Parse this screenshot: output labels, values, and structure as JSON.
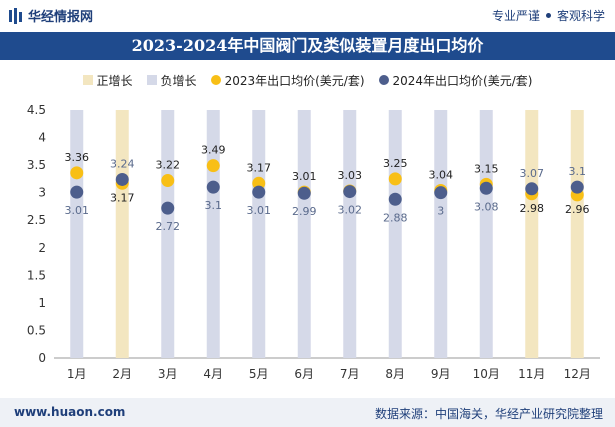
{
  "header": {
    "brand": "华经情报网",
    "tagline_left": "专业严谨",
    "tagline_right": "客观科学"
  },
  "title": "2023-2024年中国阀门及类似装置月度出口均价",
  "legend": {
    "positive": "正增长",
    "negative": "负增长",
    "series2023": "2023年出口均价(美元/套)",
    "series2024": "2024年出口均价(美元/套)"
  },
  "colors": {
    "positive_bar": "#f3e6c0",
    "negative_bar": "#d5d9e8",
    "series2023": "#f8bf16",
    "series2024": "#4d5e8c",
    "title_bg": "#1f4b8e"
  },
  "chart_data": {
    "type": "scatter",
    "title": "2023-2024年中国阀门及类似装置月度出口均价",
    "categories": [
      "1月",
      "2月",
      "3月",
      "4月",
      "5月",
      "6月",
      "7月",
      "8月",
      "9月",
      "10月",
      "11月",
      "12月"
    ],
    "series": [
      {
        "name": "2023年出口均价(美元/套)",
        "values": [
          3.36,
          3.17,
          3.22,
          3.49,
          3.17,
          3.01,
          3.03,
          3.25,
          3.04,
          3.15,
          2.98,
          2.96
        ]
      },
      {
        "name": "2024年出口均价(美元/套)",
        "values": [
          3.01,
          3.24,
          2.72,
          3.1,
          3.01,
          2.99,
          3.02,
          2.88,
          3,
          3.08,
          3.07,
          3.1
        ]
      }
    ],
    "labels2023": [
      "3.36",
      "3.17",
      "3.22",
      "3.49",
      "3.17",
      "3.01",
      "3.03",
      "3.25",
      "3.04",
      "3.15",
      "2.98",
      "2.96"
    ],
    "labels2024": [
      "3.01",
      "3.24",
      "2.72",
      "3.1",
      "3.01",
      "2.99",
      "3.02",
      "2.88",
      "3",
      "3.08",
      "3.07",
      "3.1"
    ],
    "y_ticks": [
      "0",
      "0.5",
      "1",
      "1.5",
      "2",
      "2.5",
      "3",
      "3.5",
      "4",
      "4.5"
    ],
    "ylim": [
      0,
      4.5
    ],
    "xlabel": "",
    "ylabel": ""
  },
  "footer": {
    "website": "www.huaon.com",
    "source": "数据来源：中国海关，华经产业研究院整理"
  }
}
